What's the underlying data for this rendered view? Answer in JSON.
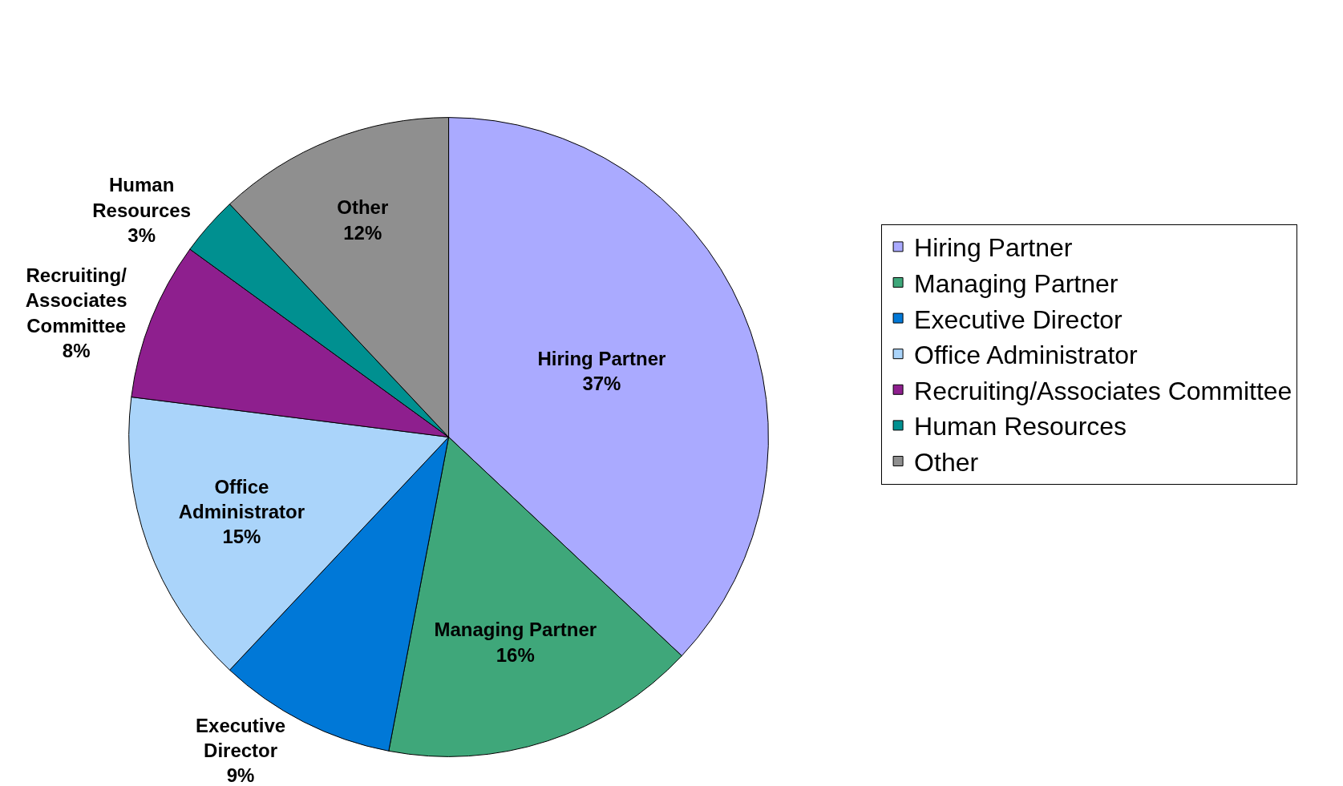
{
  "chart_data": {
    "type": "pie",
    "categories": [
      "Hiring Partner",
      "Managing Partner",
      "Executive Director",
      "Office Administrator",
      "Recruiting/Associates Committee",
      "Human Resources",
      "Other"
    ],
    "values": [
      37,
      16,
      9,
      15,
      8,
      3,
      12
    ],
    "value_labels": [
      "37%",
      "16%",
      "9%",
      "15%",
      "8%",
      "3%",
      "12%"
    ],
    "colors": [
      "#aaaaff",
      "#3fa77a",
      "#0078d7",
      "#aad4fa",
      "#8e1f8e",
      "#009090",
      "#8f8f8f"
    ],
    "legend": "right"
  }
}
